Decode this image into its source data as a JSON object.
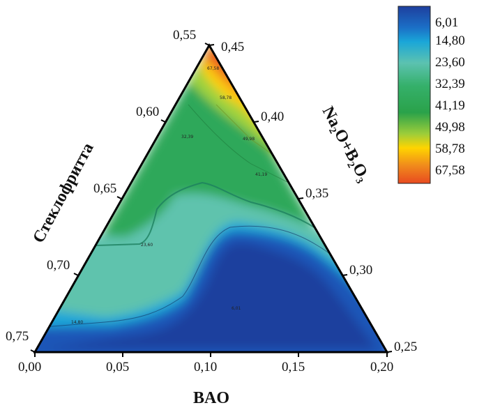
{
  "chart_data": {
    "type": "ternary-contour",
    "xlabel": "BAO",
    "left_axis_label": "Стеклофритта",
    "right_axis_label": "Na₂O+B₂O₃",
    "bottom_ticks": [
      "0,00",
      "0,05",
      "0,10",
      "0,15",
      "0,20"
    ],
    "left_ticks": [
      "0,55",
      "0,60",
      "0,65",
      "0,70",
      "0,75"
    ],
    "right_ticks": [
      "0,45",
      "0,40",
      "0,35",
      "0,30",
      "0,25"
    ],
    "legend": {
      "placement": "top-right",
      "levels": [
        "6,01",
        "14,80",
        "23,60",
        "32,39",
        "41,19",
        "49,98",
        "58,78",
        "67,58"
      ],
      "colors": [
        "#1e3f9e",
        "#1aa6d8",
        "#5cc2b0",
        "#35b06a",
        "#2aa24a",
        "#9ccd3a",
        "#ffd400",
        "#e84a20"
      ]
    },
    "contour_labels": [
      "67,58",
      "58,78",
      "32,39",
      "49,98",
      "41,19",
      "23,60",
      "14,80",
      "6,01"
    ]
  }
}
